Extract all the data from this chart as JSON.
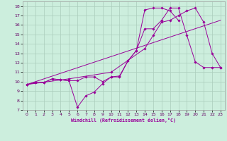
{
  "xlabel": "Windchill (Refroidissement éolien,°C)",
  "bg_color": "#cceedd",
  "grid_color": "#aaccbb",
  "line_color": "#990099",
  "xlim": [
    -0.5,
    23.5
  ],
  "ylim": [
    7,
    18.5
  ],
  "yticks": [
    7,
    8,
    9,
    10,
    11,
    12,
    13,
    14,
    15,
    16,
    17,
    18
  ],
  "xticks": [
    0,
    1,
    2,
    3,
    4,
    5,
    6,
    7,
    8,
    9,
    10,
    11,
    12,
    13,
    14,
    15,
    16,
    17,
    18,
    19,
    20,
    21,
    22,
    23
  ],
  "series": [
    {
      "x": [
        0,
        1,
        2,
        3,
        4,
        5,
        6,
        7,
        8,
        9,
        10,
        11,
        12,
        13,
        14,
        15,
        16,
        17,
        18
      ],
      "y": [
        9.7,
        9.9,
        9.9,
        10.3,
        10.2,
        10.1,
        7.3,
        8.5,
        8.9,
        9.8,
        10.5,
        10.6,
        12.2,
        13.3,
        17.6,
        17.8,
        17.8,
        17.5,
        16.5
      ]
    },
    {
      "x": [
        0,
        1,
        2,
        3,
        4,
        5,
        6,
        7,
        8,
        9,
        10,
        11,
        12,
        13,
        14,
        15,
        16,
        17,
        18,
        19,
        20,
        21,
        22,
        23
      ],
      "y": [
        9.7,
        9.9,
        9.9,
        10.3,
        10.2,
        10.1,
        10.1,
        10.5,
        10.5,
        10.0,
        10.5,
        10.5,
        12.2,
        13.3,
        15.6,
        15.6,
        16.5,
        17.8,
        17.8,
        14.9,
        12.1,
        11.5,
        11.5,
        11.5
      ]
    },
    {
      "x": [
        0,
        23
      ],
      "y": [
        9.7,
        16.5
      ]
    },
    {
      "x": [
        0,
        5,
        10,
        14,
        15,
        16,
        17,
        18,
        19,
        20,
        21,
        22,
        23
      ],
      "y": [
        9.7,
        10.3,
        11.0,
        13.5,
        14.9,
        16.3,
        16.5,
        17.0,
        17.5,
        17.8,
        16.3,
        13.0,
        11.5
      ]
    }
  ]
}
